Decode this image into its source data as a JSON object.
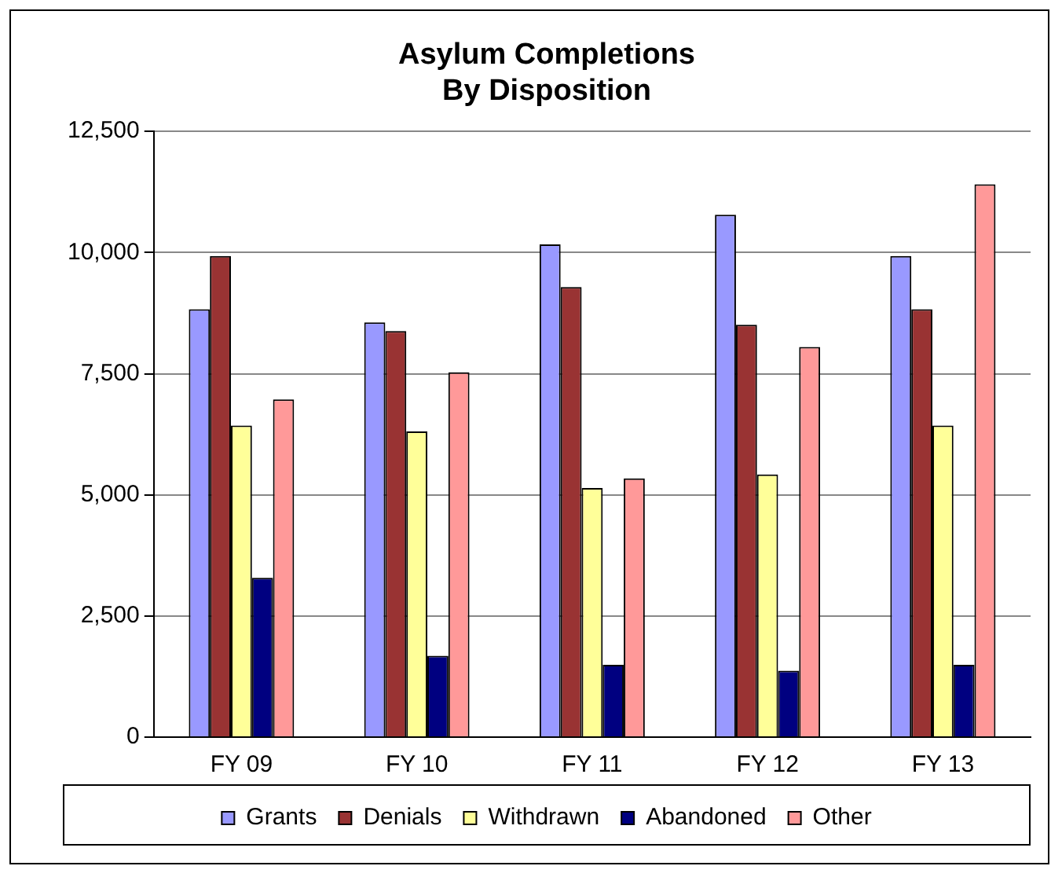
{
  "chart_data": {
    "type": "bar",
    "title": [
      "Asylum Completions",
      "By Disposition"
    ],
    "categories": [
      "FY 09",
      "FY 10",
      "FY 11",
      "FY 12",
      "FY 13"
    ],
    "series": [
      {
        "name": "Grants",
        "color": "#9999ff",
        "values": [
          8830,
          8560,
          10170,
          10780,
          9930
        ]
      },
      {
        "name": "Denials",
        "color": "#993333",
        "values": [
          9930,
          8380,
          9290,
          8510,
          8830
        ]
      },
      {
        "name": "Withdrawn",
        "color": "#ffff99",
        "values": [
          6430,
          6310,
          5140,
          5420,
          6430
        ]
      },
      {
        "name": "Abandoned",
        "color": "#000080",
        "values": [
          3290,
          1680,
          1490,
          1370,
          1490
        ]
      },
      {
        "name": "Other",
        "color": "#ff9999",
        "values": [
          6970,
          7530,
          5340,
          8050,
          11410
        ]
      }
    ],
    "ylim": [
      0,
      12500
    ],
    "yticks": [
      0,
      {
        "value": 2500,
        "label": "2,500"
      },
      {
        "value": 5000,
        "label": "5,000"
      },
      {
        "value": 7500,
        "label": "7,500"
      },
      {
        "value": 10000,
        "label": "10,000"
      },
      {
        "value": 12500,
        "label": "12,500"
      }
    ],
    "grid": "y",
    "legend": "bottom"
  }
}
